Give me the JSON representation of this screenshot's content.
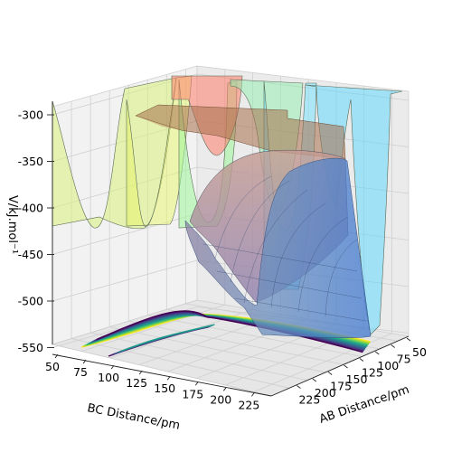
{
  "chart_data": {
    "type": "surface",
    "xlabel": "AB Distance/pm",
    "ylabel": "BC Distance/pm",
    "zlabel": "V/kJ.mol$^{-1}$",
    "zlabel_display": "V/kJ.mol⁻¹",
    "x_ticks": [
      "50",
      "75",
      "100",
      "125",
      "150",
      "175",
      "200",
      "225"
    ],
    "y_ticks": [
      "50",
      "75",
      "100",
      "125",
      "150",
      "175",
      "200",
      "225"
    ],
    "z_ticks": [
      "-300",
      "-350",
      "-400",
      "-450",
      "-500",
      "-550"
    ],
    "xlim": [
      50,
      240
    ],
    "ylim": [
      50,
      240
    ],
    "zlim": [
      -560,
      -290
    ],
    "grid": true,
    "surface_colormap": "rainbow (flattened translucent)",
    "contour_colormap": "viridis",
    "contour_offset": -560,
    "colors": {
      "curtain_yellow": "#d9f07a",
      "curtain_green": "#9ff59a",
      "curtain_cyan": "#6fe3ff",
      "curtain_red": "#ff8a78",
      "shelf_brown": "#a8704c",
      "valley_blue": "#4f7fc4",
      "valley_mauve": "#b8807c"
    }
  }
}
